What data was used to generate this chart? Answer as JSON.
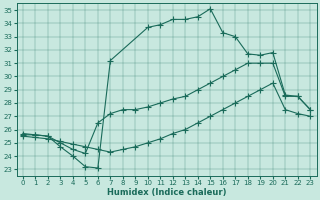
{
  "xlabel": "Humidex (Indice chaleur)",
  "background_color": "#c8e8df",
  "line_color": "#1a6b5a",
  "xlim": [
    -0.5,
    23.5
  ],
  "ylim": [
    22.5,
    35.5
  ],
  "xticks": [
    0,
    1,
    2,
    3,
    4,
    5,
    6,
    7,
    8,
    9,
    10,
    11,
    12,
    13,
    14,
    15,
    16,
    17,
    18,
    19,
    20,
    21,
    22,
    23
  ],
  "yticks": [
    23,
    24,
    25,
    26,
    27,
    28,
    29,
    30,
    31,
    32,
    33,
    34,
    35
  ],
  "line1_x": [
    0,
    1,
    2,
    3,
    4,
    5,
    6,
    7,
    8,
    9,
    10,
    11,
    12,
    13,
    14,
    15,
    16,
    17,
    18,
    19,
    20,
    21,
    22,
    23
  ],
  "line1_y": [
    25.7,
    25.6,
    25.5,
    25.0,
    24.5,
    24.2,
    26.5,
    27.2,
    27.5,
    27.5,
    27.7,
    28.0,
    28.3,
    28.5,
    29.0,
    29.5,
    30.0,
    30.5,
    31.0,
    31.0,
    31.0,
    28.5,
    28.5,
    27.5
  ],
  "line2_x": [
    0,
    1,
    2,
    3,
    4,
    5,
    6,
    7,
    8,
    9,
    10,
    11,
    12,
    13,
    14,
    15,
    16,
    17,
    18,
    19,
    20,
    21,
    22,
    23
  ],
  "line2_y": [
    25.5,
    25.4,
    25.3,
    25.1,
    24.9,
    24.7,
    24.5,
    24.3,
    24.5,
    24.7,
    25.0,
    25.3,
    25.7,
    26.0,
    26.5,
    27.0,
    27.5,
    28.0,
    28.5,
    29.0,
    29.5,
    27.5,
    27.2,
    27.0
  ],
  "line3_x": [
    0,
    1,
    2,
    3,
    4,
    5,
    6,
    7,
    10,
    11,
    12,
    13,
    14,
    15,
    16,
    17,
    18,
    19,
    20,
    21,
    22,
    23
  ],
  "line3_y": [
    25.6,
    25.6,
    25.5,
    24.7,
    24.0,
    23.2,
    23.1,
    31.2,
    33.7,
    33.9,
    34.3,
    34.3,
    34.5,
    35.1,
    33.3,
    33.0,
    31.7,
    31.6,
    31.8,
    28.6,
    28.5,
    27.5
  ]
}
